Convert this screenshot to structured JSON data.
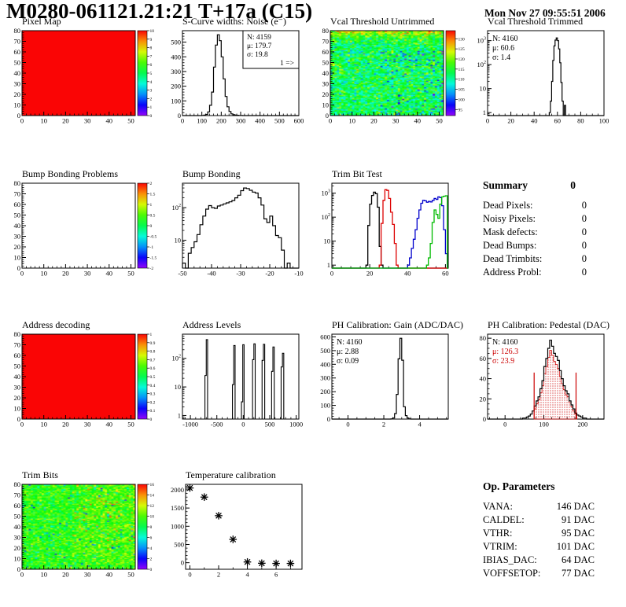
{
  "header": {
    "title": "M0280-061121.21:21 T+17a (C15)",
    "datetime": "Mon Nov 27 09:55:51 2006"
  },
  "chart_data": [
    {
      "id": "pixel-map",
      "title": "Pixel Map",
      "type": "map",
      "x": {
        "range": [
          0,
          52
        ],
        "ticks": [
          0,
          10,
          20,
          30,
          40,
          50
        ],
        "minor_div": 5
      },
      "y": {
        "range": [
          0,
          80
        ],
        "ticks": [
          0,
          10,
          20,
          30,
          40,
          50,
          60,
          70,
          80
        ],
        "minor_div": 5
      },
      "map": {
        "fill": "solid"
      },
      "colorbar": {
        "min": 0,
        "max": 10,
        "ticks": [
          0,
          1,
          2,
          3,
          4,
          5,
          6,
          7,
          8,
          9,
          10
        ]
      }
    },
    {
      "id": "scurve-noise",
      "title": "S-Curve widths: Noise (e⁻)",
      "type": "hist",
      "x": {
        "range": [
          0,
          600
        ],
        "ticks": [
          0,
          100,
          200,
          300,
          400,
          500,
          600
        ],
        "minor_div": 5
      },
      "y": {
        "scale": "linear",
        "range": [
          0,
          578
        ],
        "ticks": [
          0,
          100,
          200,
          300,
          400,
          500
        ],
        "minor_div": 5
      },
      "hist": {
        "start": 90,
        "bin_width": 10,
        "color": "#000000",
        "values": [
          0,
          1,
          3,
          8,
          25,
          70,
          160,
          330,
          480,
          550,
          510,
          400,
          250,
          130,
          60,
          28,
          12,
          6,
          3,
          2,
          1,
          1
        ]
      },
      "stats": {
        "pos": "tr",
        "box": true,
        "extra": "1 =>",
        "lines": [
          {
            "text": "N: 4159"
          },
          {
            "text": "μ: 179.7"
          },
          {
            "text": "σ: 19.8"
          }
        ]
      }
    },
    {
      "id": "vcal-threshold-untrimmed",
      "title": "Vcal Threshold Untrimmed",
      "type": "map",
      "x": {
        "range": [
          0,
          52
        ],
        "ticks": [
          0,
          10,
          20,
          30,
          40,
          50
        ],
        "minor_div": 5
      },
      "y": {
        "range": [
          0,
          80
        ],
        "ticks": [
          0,
          10,
          20,
          30,
          40,
          50,
          60,
          70,
          80
        ],
        "minor_div": 5
      },
      "map": {
        "fill": "noise",
        "style": "vcal",
        "seed": 20061127,
        "mean": 113,
        "sigma": 4.5,
        "zmin": 92,
        "zmax": 134
      },
      "colorbar": {
        "min": 92,
        "max": 134,
        "ticks": [
          95,
          100,
          105,
          110,
          115,
          120,
          125,
          130
        ]
      }
    },
    {
      "id": "vcal-threshold-trimmed",
      "title": "Vcal Threshold Trimmed",
      "type": "hist",
      "x": {
        "range": [
          0,
          100
        ],
        "ticks": [
          0,
          20,
          40,
          60,
          80,
          100
        ],
        "minor_div": 4
      },
      "y": {
        "scale": "log",
        "range": [
          0.75,
          2600
        ]
      },
      "hist": {
        "start": 53,
        "bin_width": 1,
        "color": "#000000",
        "values": [
          1,
          3,
          20,
          150,
          600,
          1050,
          1300,
          1000,
          450,
          120,
          18,
          3,
          0,
          2
        ]
      },
      "stats": {
        "pos": "tl",
        "box": false,
        "lines": [
          {
            "text": "N: 4160"
          },
          {
            "text": "μ: 60.6"
          },
          {
            "text": "σ: 1.4"
          }
        ]
      }
    },
    {
      "id": "bump-bonding-problems",
      "title": "Bump Bonding Problems",
      "type": "map",
      "x": {
        "range": [
          0,
          52
        ],
        "ticks": [
          0,
          10,
          20,
          30,
          40,
          50
        ],
        "minor_div": 5
      },
      "y": {
        "range": [
          0,
          80
        ],
        "ticks": [
          0,
          10,
          20,
          30,
          40,
          50,
          60,
          70,
          80
        ],
        "minor_div": 5
      },
      "map": {
        "fill": "none"
      },
      "colorbar": {
        "min": -2,
        "max": 2,
        "ticks": [
          -2,
          -1.5,
          -1,
          -0.5,
          0,
          0.5,
          1,
          1.5,
          2
        ]
      }
    },
    {
      "id": "bump-bonding",
      "title": "Bump Bonding",
      "type": "hist",
      "x": {
        "range": [
          -50,
          -10
        ],
        "ticks": [
          -50,
          -40,
          -30,
          -20,
          -10
        ],
        "minor_div": 5
      },
      "y": {
        "scale": "log",
        "range": [
          1.4,
          560
        ]
      },
      "hist": {
        "start": -50,
        "bin_width": 1,
        "color": "#000000",
        "values": [
          2,
          1,
          4,
          6,
          9,
          15,
          30,
          55,
          90,
          115,
          100,
          95,
          112,
          120,
          130,
          140,
          150,
          165,
          200,
          240,
          330,
          400,
          385,
          340,
          300,
          280,
          200,
          120,
          45,
          35,
          55,
          28,
          14,
          12,
          5,
          0,
          2,
          0
        ]
      }
    },
    {
      "id": "trim-bit-test",
      "title": "Trim Bit Test",
      "type": "multihist",
      "x": {
        "range": [
          0,
          61.5
        ],
        "ticks": [
          0,
          20,
          40,
          60
        ],
        "minor_div": 4
      },
      "y": {
        "scale": "log",
        "range": [
          0.75,
          2600
        ]
      },
      "series": [
        {
          "name": "trim-bit-black",
          "color": "#000000",
          "start": 18,
          "bin_width": 1,
          "values": [
            1,
            45,
            350,
            800,
            1100,
            950,
            260,
            6,
            1
          ]
        },
        {
          "name": "trim-bit-red",
          "color": "#dd0000",
          "start": 25,
          "bin_width": 1,
          "values": [
            1,
            55,
            500,
            1400,
            1300,
            600,
            160,
            50,
            8,
            1
          ]
        },
        {
          "name": "trim-bit-blue",
          "color": "#0000cc",
          "start": 40,
          "bin_width": 1,
          "values": [
            1,
            2,
            5,
            12,
            30,
            90,
            200,
            380,
            500,
            480,
            420,
            450,
            430,
            500,
            600,
            550,
            700,
            650,
            300,
            30,
            3
          ]
        },
        {
          "name": "trim-bit-green",
          "color": "#00bb00",
          "start": 50,
          "bin_width": 1,
          "values": [
            1,
            2,
            8,
            60,
            200,
            130,
            90,
            350,
            700,
            750,
            780
          ]
        }
      ]
    },
    {
      "id": "summary",
      "title": "Summary",
      "type": "text",
      "header_value": "0",
      "rows": [
        {
          "label": "Dead Pixels:",
          "value": "0"
        },
        {
          "label": "Noisy Pixels:",
          "value": "0"
        },
        {
          "label": "Mask defects:",
          "value": "0"
        },
        {
          "label": "Dead Bumps:",
          "value": "0"
        },
        {
          "label": "Dead Trimbits:",
          "value": "0"
        },
        {
          "label": "Address Probl:",
          "value": "0"
        }
      ]
    },
    {
      "id": "address-decoding",
      "title": "Address decoding",
      "type": "map",
      "x": {
        "range": [
          0,
          52
        ],
        "ticks": [
          0,
          10,
          20,
          30,
          40,
          50
        ],
        "minor_div": 5
      },
      "y": {
        "range": [
          0,
          80
        ],
        "ticks": [
          0,
          10,
          20,
          30,
          40,
          50,
          60,
          70,
          80
        ],
        "minor_div": 5
      },
      "map": {
        "fill": "solid"
      },
      "colorbar": {
        "min": 0,
        "max": 1,
        "ticks": [
          0,
          0.1,
          0.2,
          0.3,
          0.4,
          0.5,
          0.6,
          0.7,
          0.8,
          0.9,
          1
        ]
      }
    },
    {
      "id": "address-levels",
      "title": "Address Levels",
      "type": "peaks",
      "x": {
        "range": [
          -1150,
          1050
        ],
        "ticks": [
          -1000,
          -500,
          0,
          500,
          1000
        ],
        "minor_div": 5
      },
      "y": {
        "scale": "log",
        "range": [
          0.75,
          700
        ]
      },
      "peak_width": 25,
      "peaks": [
        {
          "x": -700,
          "h1": 25,
          "h2": 450
        },
        {
          "x": -180,
          "h1": 12,
          "h2": 280
        },
        {
          "x": -10,
          "h1": 3,
          "h2": 300
        },
        {
          "x": 200,
          "h1": 90,
          "h2": 320
        },
        {
          "x": 380,
          "h1": 85,
          "h2": 310
        },
        {
          "x": 560,
          "h1": 35,
          "h2": 250
        },
        {
          "x": 740,
          "h1": 50,
          "h2": 150
        }
      ]
    },
    {
      "id": "ph-calibration-gain",
      "title": "PH Calibration: Gain (ADC/DAC)",
      "type": "hist",
      "x": {
        "range": [
          -0.9,
          5.6
        ],
        "ticks": [
          0,
          2,
          4
        ],
        "minor_div": 4
      },
      "y": {
        "scale": "linear",
        "range": [
          0,
          620
        ],
        "ticks": [
          0,
          100,
          200,
          300,
          400,
          500,
          600
        ],
        "minor_div": 5
      },
      "hist": {
        "start": 2.4,
        "bin_width": 0.1,
        "color": "#000000",
        "values": [
          2,
          8,
          40,
          180,
          440,
          590,
          430,
          90,
          25,
          8,
          2
        ]
      },
      "stats": {
        "pos": "tl",
        "box": false,
        "lines": [
          {
            "text": "N: 4160"
          },
          {
            "text": "μ: 2.88"
          },
          {
            "text": "σ: 0.09"
          }
        ]
      }
    },
    {
      "id": "ph-calibration-pedestal",
      "title": "PH Calibration: Pedestal (DAC)",
      "type": "hist",
      "x": {
        "range": [
          -45,
          255
        ],
        "ticks": [
          0,
          100,
          200
        ],
        "minor_div": 5
      },
      "y": {
        "scale": "linear",
        "range": [
          0,
          84
        ],
        "ticks": [
          0,
          20,
          40,
          60,
          80
        ],
        "minor_div": 4
      },
      "hist": {
        "start": 40,
        "bin_width": 5,
        "color": "#000000",
        "values": [
          0,
          1,
          1,
          2,
          3,
          5,
          8,
          13,
          18,
          22,
          30,
          38,
          52,
          60,
          70,
          78,
          72,
          65,
          62,
          58,
          48,
          40,
          33,
          28,
          25,
          18,
          14,
          10,
          6,
          4,
          3,
          2,
          1,
          1
        ]
      },
      "fill_hist": {
        "start": 75,
        "bin_width": 5,
        "color": "#cc0000",
        "values": [
          10,
          15,
          19,
          26,
          33,
          45,
          52,
          61,
          68,
          63,
          57,
          54,
          50,
          42,
          35,
          29,
          24,
          22,
          16,
          12,
          8,
          5
        ]
      },
      "vlines": {
        "x": [
          75,
          183
        ],
        "height": 46,
        "color": "#cc0000"
      },
      "stats": {
        "pos": "tl",
        "box": false,
        "lines": [
          {
            "text": "N: 4160",
            "color": "#000000"
          },
          {
            "text": "μ: 126.3",
            "color": "#cc0000"
          },
          {
            "text": "σ: 23.9",
            "color": "#cc0000"
          }
        ]
      }
    },
    {
      "id": "trim-bits",
      "title": "Trim Bits",
      "type": "map",
      "x": {
        "range": [
          0,
          52
        ],
        "ticks": [
          0,
          10,
          20,
          30,
          40,
          50
        ],
        "minor_div": 5
      },
      "y": {
        "range": [
          0,
          80
        ],
        "ticks": [
          0,
          10,
          20,
          30,
          40,
          50,
          60,
          70,
          80
        ],
        "minor_div": 5
      },
      "map": {
        "fill": "noise",
        "style": "trimbits",
        "seed": 4160,
        "mean": 9.3,
        "sigma": 1.2,
        "zmin": 0,
        "zmax": 16
      },
      "colorbar": {
        "min": 0,
        "max": 16,
        "ticks": [
          0,
          2,
          4,
          6,
          8,
          10,
          12,
          14,
          16
        ]
      }
    },
    {
      "id": "temperature-calibration",
      "title": "Temperature calibration",
      "type": "scatter",
      "x": {
        "range": [
          -0.3,
          7.8
        ],
        "ticks": [
          0,
          2,
          4,
          6
        ],
        "minor_div": 2
      },
      "y": {
        "scale": "linear",
        "range": [
          -180,
          2150
        ],
        "ticks": [
          0,
          500,
          1000,
          1500,
          2000
        ],
        "minor_div": 5
      },
      "points": [
        [
          0,
          2050
        ],
        [
          1,
          1800
        ],
        [
          2,
          1290
        ],
        [
          3,
          640
        ],
        [
          4,
          20
        ],
        [
          5,
          -15
        ],
        [
          6,
          -20
        ],
        [
          7,
          -20
        ]
      ]
    },
    {
      "id": "op-parameters",
      "title": "Op. Parameters",
      "type": "text",
      "rows": [
        {
          "label": "VANA:",
          "value": "146 DAC"
        },
        {
          "label": "CALDEL:",
          "value": "91 DAC"
        },
        {
          "label": "VTHR:",
          "value": "95 DAC"
        },
        {
          "label": "VTRIM:",
          "value": "101 DAC"
        },
        {
          "label": "IBIAS_DAC:",
          "value": "64 DAC"
        },
        {
          "label": "VOFFSETOP:",
          "value": "77 DAC"
        }
      ]
    }
  ]
}
